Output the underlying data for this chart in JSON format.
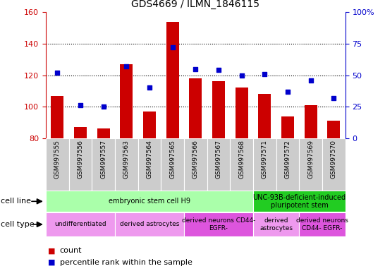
{
  "title": "GDS4669 / ILMN_1846115",
  "samples": [
    "GSM997555",
    "GSM997556",
    "GSM997557",
    "GSM997563",
    "GSM997564",
    "GSM997565",
    "GSM997566",
    "GSM997567",
    "GSM997568",
    "GSM997571",
    "GSM997572",
    "GSM997569",
    "GSM997570"
  ],
  "counts": [
    107,
    87,
    86,
    127,
    97,
    154,
    118,
    116,
    112,
    108,
    94,
    101,
    91
  ],
  "percentiles": [
    52,
    26,
    25,
    57,
    40,
    72,
    55,
    54,
    50,
    51,
    37,
    46,
    32
  ],
  "ylim_left": [
    80,
    160
  ],
  "ylim_right": [
    0,
    100
  ],
  "bar_color": "#cc0000",
  "dot_color": "#0000cc",
  "tick_bg_color": "#cccccc",
  "cell_line_groups": [
    {
      "label": "embryonic stem cell H9",
      "start": 0,
      "end": 9,
      "color": "#aaffaa"
    },
    {
      "label": "UNC-93B-deficient-induced\npluripotent stem",
      "start": 9,
      "end": 13,
      "color": "#22cc22"
    }
  ],
  "cell_type_groups": [
    {
      "label": "undifferentiated",
      "start": 0,
      "end": 3,
      "color": "#ee99ee"
    },
    {
      "label": "derived astrocytes",
      "start": 3,
      "end": 6,
      "color": "#ee99ee"
    },
    {
      "label": "derived neurons CD44-\nEGFR-",
      "start": 6,
      "end": 9,
      "color": "#dd55dd"
    },
    {
      "label": "derived\nastrocytes",
      "start": 9,
      "end": 11,
      "color": "#ee99ee"
    },
    {
      "label": "derived neurons\nCD44- EGFR-",
      "start": 11,
      "end": 13,
      "color": "#dd55dd"
    }
  ],
  "legend_count_color": "#cc0000",
  "legend_pct_color": "#0000cc"
}
